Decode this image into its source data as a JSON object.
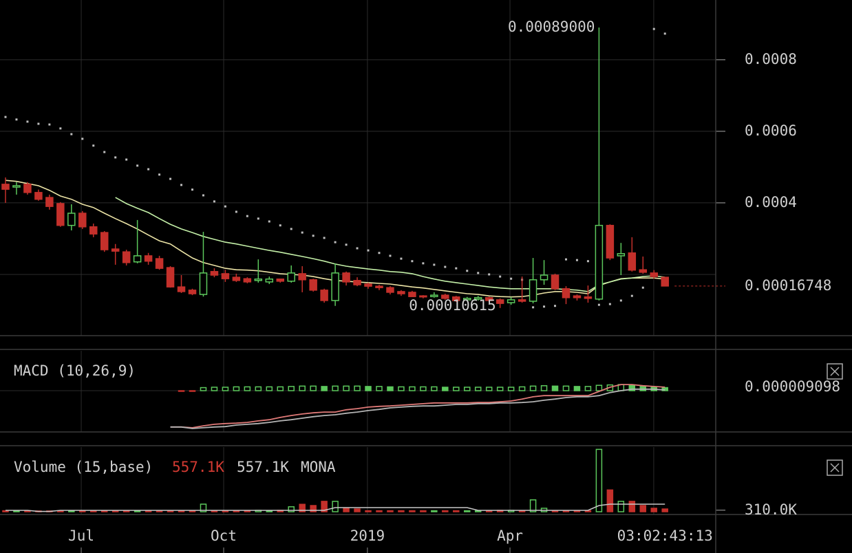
{
  "chart_data": [
    {
      "type": "candlestick",
      "xlim": [
        -0.5,
        64.62
      ],
      "xticks": [
        {
          "value": 6.89,
          "label": "Jul"
        },
        {
          "value": 19.85,
          "label": "Oct"
        },
        {
          "value": 32.93,
          "label": "2019"
        },
        {
          "value": 45.9,
          "label": "Apr"
        }
      ],
      "xgrid": [
        58.98
      ],
      "ylim": [
        2.88e-05,
        0.000967
      ],
      "yticks": [
        0.0004,
        0.0006,
        0.0008
      ],
      "ygrid": [
        0.0002
      ],
      "up_color": "#5cc85c",
      "down_color": "#c4302b",
      "open": [
        0.000452,
        0.000444,
        0.000452,
        0.000429,
        0.000415,
        0.000398,
        0.000337,
        0.000371,
        0.000333,
        0.000317,
        0.000271,
        0.000263,
        0.000235,
        0.000252,
        0.000244,
        0.000219,
        0.000165,
        0.000156,
        0.000144,
        0.000208,
        0.000202,
        0.000192,
        0.000188,
        0.000183,
        0.000179,
        0.000187,
        0.000181,
        0.000202,
        0.000185,
        0.000156,
        0.000127,
        0.000204,
        0.000183,
        0.000173,
        0.000167,
        0.000163,
        0.000152,
        0.00015,
        0.00014,
        0.000138,
        0.000142,
        0.000137,
        0.000129,
        0.000131,
        0.000135,
        0.000129,
        0.000121,
        0.000129,
        0.000125,
        0.000185,
        0.000198,
        0.00016,
        0.00014,
        0.000137,
        0.000131,
        0.000337,
        0.000252,
        0.00026,
        0.000213,
        0.000204,
        0.000192
      ],
      "high": [
        0.000471,
        0.000458,
        0.000458,
        0.000437,
        0.000423,
        0.000402,
        0.000396,
        0.000377,
        0.000342,
        0.000321,
        0.000285,
        0.000269,
        0.000352,
        0.00026,
        0.000252,
        0.000223,
        0.000198,
        0.00016,
        0.000319,
        0.000217,
        0.000213,
        0.000202,
        0.000192,
        0.000242,
        0.000194,
        0.000188,
        0.000225,
        0.000223,
        0.000188,
        0.00016,
        0.000231,
        0.000208,
        0.000192,
        0.000177,
        0.000171,
        0.000167,
        0.000156,
        0.000154,
        0.000142,
        0.00015,
        0.000146,
        0.00014,
        0.000137,
        0.00014,
        0.000138,
        0.000133,
        0.000137,
        0.000194,
        0.000246,
        0.00024,
        0.000202,
        0.000167,
        0.000144,
        0.000169,
        0.00089,
        0.00034,
        0.000288,
        0.000304,
        0.00025,
        0.000212,
        0.000192
      ],
      "low": [
        0.0004,
        0.000423,
        0.000423,
        0.000406,
        0.000381,
        0.000333,
        0.000323,
        0.000327,
        0.000304,
        0.000263,
        0.000227,
        0.000225,
        0.000231,
        0.000227,
        0.000213,
        0.000163,
        0.000148,
        0.000142,
        0.000138,
        0.000192,
        0.000179,
        0.000179,
        0.000175,
        0.000177,
        0.000173,
        0.000177,
        0.000177,
        0.00015,
        0.000152,
        0.000121,
        0.000112,
        0.000169,
        0.000167,
        0.00016,
        0.000156,
        0.000144,
        0.00014,
        0.000137,
        0.000133,
        0.000135,
        0.000129,
        0.000123,
        0.000125,
        0.000127,
        0.000123,
        0.00010615,
        0.000115,
        0.000121,
        0.000119,
        0.000171,
        0.000156,
        0.000117,
        0.000127,
        0.000121,
        0.000127,
        0.00024,
        0.000198,
        0.000208,
        0.000202,
        0.000188,
        0.000167
      ],
      "close": [
        0.000438,
        0.000448,
        0.000429,
        0.00041,
        0.00039,
        0.000337,
        0.000371,
        0.000333,
        0.000313,
        0.000269,
        0.000265,
        0.000233,
        0.000252,
        0.000237,
        0.000217,
        0.000165,
        0.000152,
        0.000146,
        0.000204,
        0.000198,
        0.000188,
        0.000183,
        0.000179,
        0.000187,
        0.000187,
        0.000181,
        0.000204,
        0.000185,
        0.000156,
        0.000127,
        0.000204,
        0.000179,
        0.000171,
        0.000167,
        0.000163,
        0.00015,
        0.000146,
        0.000138,
        0.000137,
        0.000142,
        0.000133,
        0.000127,
        0.000133,
        0.000135,
        0.000127,
        0.000119,
        0.000129,
        0.000125,
        0.000185,
        0.000198,
        0.00016,
        0.000135,
        0.000135,
        0.000133,
        0.000337,
        0.000246,
        0.000258,
        0.000212,
        0.000206,
        0.000194,
        0.00016748
      ],
      "high_labels": [
        null,
        null,
        null,
        null,
        null,
        null,
        null,
        null,
        null,
        null,
        null,
        null,
        null,
        null,
        null,
        null,
        null,
        null,
        null,
        null,
        null,
        null,
        null,
        null,
        null,
        null,
        null,
        null,
        null,
        null,
        null,
        null,
        null,
        null,
        null,
        null,
        null,
        null,
        null,
        null,
        null,
        null,
        null,
        null,
        null,
        null,
        null,
        null,
        null,
        null,
        null,
        null,
        null,
        null,
        "0.00089000",
        null,
        null,
        null,
        null,
        null,
        null
      ],
      "low_labels": [
        null,
        null,
        null,
        null,
        null,
        null,
        null,
        null,
        null,
        null,
        null,
        null,
        null,
        null,
        null,
        null,
        null,
        null,
        null,
        null,
        null,
        null,
        null,
        null,
        null,
        null,
        null,
        null,
        null,
        null,
        null,
        null,
        null,
        null,
        null,
        null,
        null,
        null,
        null,
        null,
        null,
        null,
        null,
        null,
        null,
        "0.00010615",
        null,
        null,
        null,
        null,
        null,
        null,
        null,
        null,
        null,
        null,
        null,
        null,
        null,
        null,
        null
      ],
      "series": [
        {
          "style": "line",
          "color": "#ece4a6",
          "values": [
            0.000463,
            0.00046,
            0.000454,
            0.000448,
            0.000435,
            0.000419,
            0.00041,
            0.000396,
            0.000387,
            0.000371,
            0.000356,
            0.000342,
            0.000327,
            0.00031,
            0.000294,
            0.000285,
            0.000265,
            0.000246,
            0.000233,
            0.000225,
            0.000217,
            0.000213,
            0.000212,
            0.00021,
            0.000206,
            0.000202,
            0.0002,
            0.000198,
            0.000194,
            0.000188,
            0.000183,
            0.000181,
            0.000179,
            0.000177,
            0.000175,
            0.000173,
            0.000169,
            0.000165,
            0.000162,
            0.000158,
            0.000154,
            0.00015,
            0.000146,
            0.000144,
            0.00014,
            0.000138,
            0.000137,
            0.000138,
            0.000142,
            0.000148,
            0.000152,
            0.000152,
            0.00015,
            0.000146,
            0.000169,
            0.000179,
            0.000188,
            0.00019,
            0.00019,
            0.00019,
            0.000187
          ]
        },
        {
          "style": "line",
          "color": "#c4f0a8",
          "values": [
            null,
            null,
            null,
            null,
            null,
            null,
            null,
            null,
            null,
            null,
            0.000415,
            0.000398,
            0.000385,
            0.000373,
            0.000356,
            0.00034,
            0.000327,
            0.000317,
            0.000306,
            0.000298,
            0.00029,
            0.000285,
            0.000279,
            0.000273,
            0.000267,
            0.000262,
            0.000256,
            0.00025,
            0.000244,
            0.000237,
            0.000229,
            0.000223,
            0.000219,
            0.000215,
            0.000212,
            0.000208,
            0.000206,
            0.000202,
            0.000194,
            0.000187,
            0.000181,
            0.000177,
            0.000173,
            0.000169,
            0.000165,
            0.000162,
            0.00016,
            0.00016,
            0.00016,
            0.00016,
            0.00016,
            0.000158,
            0.000156,
            0.000152,
            0.000171,
            0.000179,
            0.000187,
            0.00019,
            0.000194,
            0.000196,
            0.000192
          ]
        },
        {
          "style": "dots",
          "color": "#bdbdbd",
          "values": [
            0.00064,
            0.000633,
            0.000627,
            0.000621,
            0.000619,
            0.000608,
            0.000592,
            0.000579,
            0.00056,
            0.000542,
            0.000527,
            0.000521,
            0.000504,
            0.000494,
            0.000479,
            0.000467,
            0.00045,
            0.000437,
            0.000421,
            0.000404,
            0.00039,
            0.000375,
            0.000363,
            0.000356,
            0.000348,
            0.000337,
            0.000327,
            0.000317,
            0.000308,
            0.000302,
            0.00029,
            0.000283,
            0.000273,
            0.000267,
            0.00026,
            0.000252,
            0.000244,
            0.000237,
            0.000231,
            0.000227,
            0.000221,
            0.000217,
            0.00021,
            0.000204,
            0.0002,
            0.000194,
            0.000188,
            0.000185,
            0.000108,
            0.00011,
            0.000112,
            0.000242,
            0.00024,
            0.000237,
            0.000115,
            0.000117,
            0.000127,
            0.00014,
            0.000163,
            0.000886,
            0.000873
          ]
        }
      ],
      "countdown": "03:02:43:13"
    },
    {
      "type": "macd",
      "title": "MACD (10,26,9)",
      "ylim": [
        -0.000108,
        0.0001044
      ],
      "ygrid": [
        0
      ],
      "series": [
        {
          "color": "#e07a78",
          "values": [
            null,
            null,
            null,
            null,
            null,
            null,
            null,
            null,
            null,
            null,
            null,
            null,
            null,
            null,
            null,
            -9.5e-05,
            -9.5e-05,
            -9.7e-05,
            -9.2e-05,
            -8.8e-05,
            -8.6e-05,
            -8.5e-05,
            -8.3e-05,
            -7.9e-05,
            -7.6e-05,
            -7e-05,
            -6.5e-05,
            -6.1e-05,
            -5.8e-05,
            -5.6e-05,
            -5.6e-05,
            -5e-05,
            -4.7e-05,
            -4.3e-05,
            -4.1e-05,
            -4e-05,
            -3.8e-05,
            -3.6e-05,
            -3.4e-05,
            -3.2e-05,
            -3.2e-05,
            -3.2e-05,
            -3.2e-05,
            -3.1e-05,
            -3.1e-05,
            -2.9e-05,
            -2.7e-05,
            -2.2e-05,
            -1.6e-05,
            -1.3e-05,
            -1.3e-05,
            -1.3e-05,
            -1.3e-05,
            -1.3e-05,
            -2e-06,
            9e-06,
            1.6e-05,
            1.6e-05,
            1.3e-05,
            1.1e-05,
            9.098e-06
          ]
        },
        {
          "color": "#b4b4b4",
          "values": [
            null,
            null,
            null,
            null,
            null,
            null,
            null,
            null,
            null,
            null,
            null,
            null,
            null,
            null,
            null,
            -9.5e-05,
            -9.5e-05,
            -9.9e-05,
            -9.7e-05,
            -9.5e-05,
            -9.4e-05,
            -9e-05,
            -8.8e-05,
            -8.6e-05,
            -8.3e-05,
            -7.9e-05,
            -7.6e-05,
            -7.2e-05,
            -6.8e-05,
            -6.5e-05,
            -6.3e-05,
            -5.9e-05,
            -5.6e-05,
            -5.2e-05,
            -4.9e-05,
            -4.5e-05,
            -4.3e-05,
            -4.1e-05,
            -4e-05,
            -4e-05,
            -3.8e-05,
            -3.6e-05,
            -3.6e-05,
            -3.4e-05,
            -3.4e-05,
            -3.2e-05,
            -3.2e-05,
            -3.1e-05,
            -2.9e-05,
            -2.5e-05,
            -2.2e-05,
            -1.8e-05,
            -1.6e-05,
            -1.6e-05,
            -1.3e-05,
            -5e-06,
            0,
            4e-06,
            4e-06,
            4e-06,
            2e-06
          ]
        }
      ],
      "histogram": {
        "up_color": "#5cc85c",
        "down_color": "#c4302b",
        "values": [
          null,
          null,
          null,
          null,
          null,
          null,
          null,
          null,
          null,
          null,
          null,
          null,
          null,
          null,
          null,
          null,
          -1e-06,
          -1e-06,
          8e-06,
          9e-06,
          9e-06,
          1e-05,
          1e-05,
          1e-05,
          1e-05,
          1e-05,
          1.1e-05,
          1.2e-05,
          1.2e-05,
          1.1e-05,
          1.2e-05,
          1.2e-05,
          1.2e-05,
          1.1e-05,
          1.1e-05,
          1e-05,
          1e-05,
          1e-05,
          1e-05,
          1e-05,
          9e-06,
          9e-06,
          9e-06,
          9e-06,
          9e-06,
          9e-06,
          9e-06,
          1e-05,
          1.2e-05,
          1.3e-05,
          1.2e-05,
          1.2e-05,
          1.1e-05,
          1.1e-05,
          1.4e-05,
          1.5e-05,
          1.6e-05,
          1.4e-05,
          1.2e-05,
          1e-05,
          8e-06
        ]
      }
    },
    {
      "type": "volume",
      "title": "Volume (15,base)",
      "legend": {
        "value_label": "557.1K",
        "base_label": "557.1K",
        "unit": "MONA"
      },
      "ylim": [
        -556000,
        13066000
      ],
      "yticks": [
        {
          "value": 310000,
          "label": "310.0K"
        }
      ],
      "values": [
        200000,
        200000,
        200000,
        150000,
        150000,
        200000,
        200000,
        200000,
        200000,
        200000,
        200000,
        200000,
        200000,
        200000,
        200000,
        200000,
        200000,
        200000,
        1530000,
        200000,
        200000,
        200000,
        200000,
        280000,
        200000,
        280000,
        1000000,
        1500000,
        1250000,
        2100000,
        2100000,
        700000,
        560000,
        200000,
        200000,
        200000,
        200000,
        200000,
        200000,
        200000,
        200000,
        200000,
        200000,
        200000,
        200000,
        280000,
        280000,
        200000,
        2400000,
        700000,
        200000,
        200000,
        200000,
        200000,
        12600000,
        4400000,
        2100000,
        2100000,
        1250000,
        700000,
        557100
      ],
      "average": {
        "color": "#c8c8c8",
        "values": [
          278000,
          278000,
          278000,
          60000,
          60000,
          278000,
          278000,
          278000,
          278000,
          278000,
          278000,
          278000,
          278000,
          278000,
          278000,
          278000,
          278000,
          278000,
          278000,
          278000,
          278000,
          278000,
          278000,
          278000,
          278000,
          278000,
          278000,
          278000,
          278000,
          278000,
          834000,
          834000,
          834000,
          834000,
          834000,
          834000,
          834000,
          834000,
          834000,
          834000,
          834000,
          834000,
          834000,
          278000,
          278000,
          278000,
          278000,
          278000,
          278000,
          278000,
          278000,
          278000,
          278000,
          278000,
          1250000,
          1529000,
          1529000,
          1529000,
          1529000,
          1529000,
          1529000
        ]
      }
    }
  ]
}
